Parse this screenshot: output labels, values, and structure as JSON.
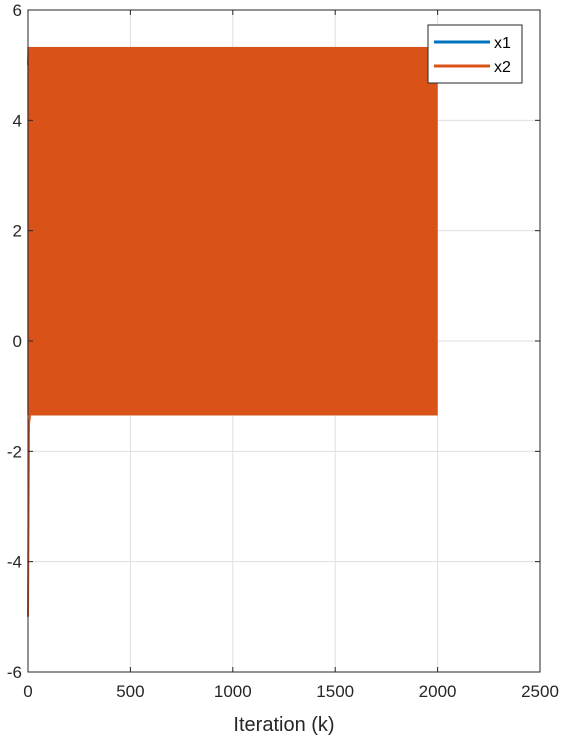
{
  "chart_data": {
    "type": "line",
    "title": "",
    "xlabel": "Iteration (k)",
    "ylabel": "",
    "xlim": [
      0,
      2500
    ],
    "ylim": [
      -6,
      6
    ],
    "xticks": [
      0,
      500,
      1000,
      1500,
      2000,
      2500
    ],
    "yticks": [
      -6,
      -4,
      -2,
      0,
      2,
      4,
      6
    ],
    "grid": true,
    "legend": "top-right",
    "series": [
      {
        "name": "x1",
        "color": "#0072BD",
        "start": [
          0,
          5.0
        ],
        "oscillation_range": [
          -1.35,
          5.33
        ],
        "k_end": 2000
      },
      {
        "name": "x2",
        "color": "#D95319",
        "start": [
          0,
          -5.0
        ],
        "oscillation_range": [
          -1.35,
          5.33
        ],
        "k_end": 2000,
        "transient": [
          [
            0,
            -5.0
          ],
          [
            5,
            -1.5
          ],
          [
            10,
            -1.35
          ]
        ]
      }
    ]
  }
}
